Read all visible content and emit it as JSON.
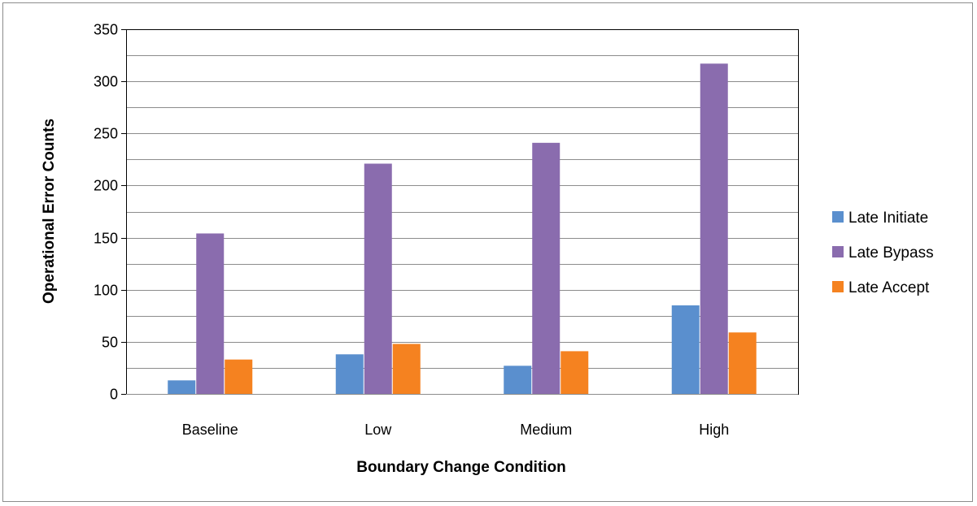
{
  "chart_data": {
    "type": "bar",
    "title": "",
    "xlabel": "Boundary Change Condition",
    "ylabel": "Operational Error Counts",
    "categories": [
      "Baseline",
      "Low",
      "Medium",
      "High"
    ],
    "ylim": [
      0,
      350
    ],
    "yticks": [
      0,
      50,
      100,
      150,
      200,
      250,
      300,
      350
    ],
    "grid": true,
    "legend_position": "right",
    "series": [
      {
        "name": "Late Initiate",
        "color": "#5a8fce",
        "values": [
          13,
          38,
          27,
          85
        ]
      },
      {
        "name": "Late Bypass",
        "color": "#8a6cae",
        "values": [
          154,
          221,
          241,
          317
        ]
      },
      {
        "name": "Late Accept",
        "color": "#f58220",
        "values": [
          33,
          48,
          41,
          59
        ]
      }
    ]
  }
}
